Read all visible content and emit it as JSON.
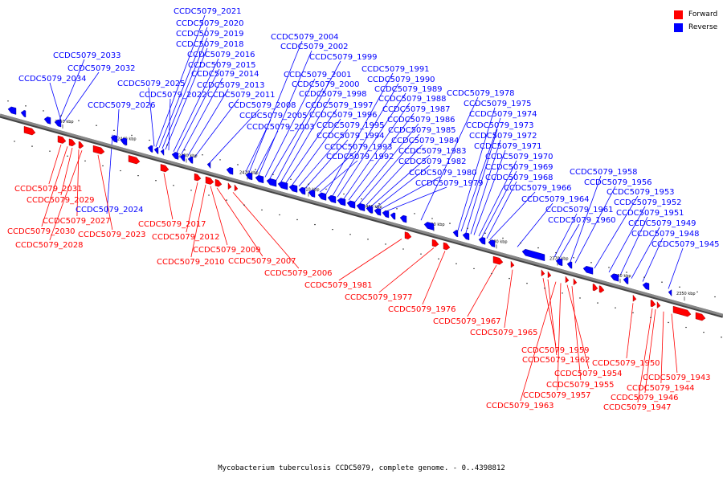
{
  "title": "Mycobacterium tuberculosis CCDC5079, complete genome. - 0..4398812",
  "legend": [
    {
      "label": "Forward",
      "color": "#ff0000"
    },
    {
      "label": "Reverse",
      "color": "#0000ff"
    }
  ],
  "colors": {
    "forward": "#ff0000",
    "reverse": "#0000ff",
    "backbone": "#888888"
  },
  "ticks": [
    "2450 kbp",
    "2440 kbp",
    "2430 kbp",
    "2420 kbp",
    "2410 kbp",
    "2400 kbp",
    "2390 kbp",
    "2380 kbp",
    "2370 kbp",
    "2360 kbp",
    "2350 kbp"
  ],
  "reverse_genes": [
    "CCDC5079_2034",
    "CCDC5079_2033",
    "CCDC5079_2032",
    "CCDC5079_2026",
    "CCDC5079_2025",
    "CCDC5079_2022",
    "CCDC5079_2021",
    "CCDC5079_2020",
    "CCDC5079_2019",
    "CCDC5079_2018",
    "CCDC5079_2016",
    "CCDC5079_2015",
    "CCDC5079_2014",
    "CCDC5079_2013",
    "CCDC5079_2011",
    "CCDC5079_2008",
    "CCDC5079_2005",
    "CCDC5079_2004",
    "CCDC5079_2003",
    "CCDC5079_2002",
    "CCDC5079_2001",
    "CCDC5079_2000",
    "CCDC5079_1999",
    "CCDC5079_1998",
    "CCDC5079_1997",
    "CCDC5079_1996",
    "CCDC5079_1995",
    "CCDC5079_1994",
    "CCDC5079_1993",
    "CCDC5079_1992",
    "CCDC5079_1991",
    "CCDC5079_1990",
    "CCDC5079_1989",
    "CCDC5079_1988",
    "CCDC5079_1987",
    "CCDC5079_1986",
    "CCDC5079_1985",
    "CCDC5079_1984",
    "CCDC5079_1983",
    "CCDC5079_1982",
    "CCDC5079_1980",
    "CCDC5079_1979",
    "CCDC5079_1978",
    "CCDC5079_1975",
    "CCDC5079_1974",
    "CCDC5079_1973",
    "CCDC5079_1972",
    "CCDC5079_1971",
    "CCDC5079_1970",
    "CCDC5079_1969",
    "CCDC5079_1968",
    "CCDC5079_1966",
    "CCDC5079_1964",
    "CCDC5079_1961",
    "CCDC5079_1960",
    "CCDC5079_1958",
    "CCDC5079_1956",
    "CCDC5079_1953",
    "CCDC5079_1952",
    "CCDC5079_1951",
    "CCDC5079_1949",
    "CCDC5079_1948",
    "CCDC5079_1945",
    "CCDC5079_2024"
  ],
  "forward_genes": [
    "CCDC5079_2031",
    "CCDC5079_2029",
    "CCDC5079_2027",
    "CCDC5079_2030",
    "CCDC5079_2028",
    "CCDC5079_2023",
    "CCDC5079_2017",
    "CCDC5079_2012",
    "CCDC5079_2010",
    "CCDC5079_2009",
    "CCDC5079_2007",
    "CCDC5079_2006",
    "CCDC5079_1981",
    "CCDC5079_1977",
    "CCDC5079_1976",
    "CCDC5079_1967",
    "CCDC5079_1965",
    "CCDC5079_1959",
    "CCDC5079_1962",
    "CCDC5079_1954",
    "CCDC5079_1955",
    "CCDC5079_1957",
    "CCDC5079_1963",
    "CCDC5079_1950",
    "CCDC5079_1943",
    "CCDC5079_1944",
    "CCDC5079_1946",
    "CCDC5079_1947"
  ]
}
